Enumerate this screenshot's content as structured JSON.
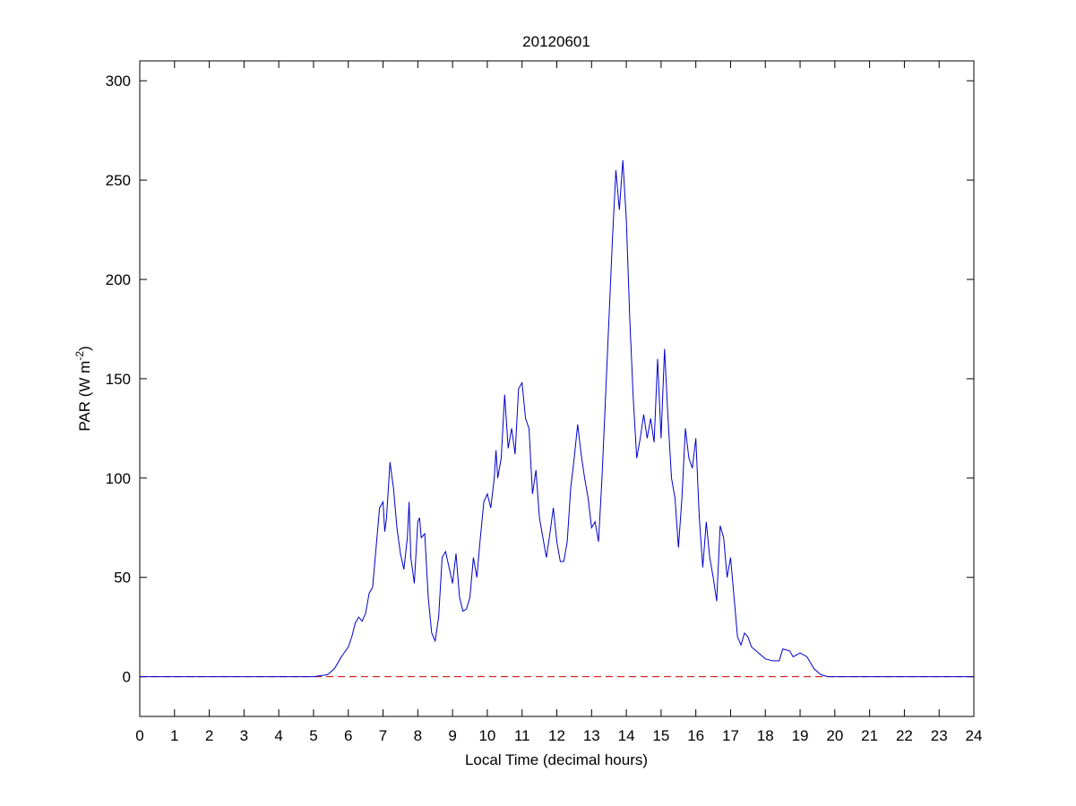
{
  "chart_data": {
    "type": "line",
    "title": "20120601",
    "xlabel": "Local Time (decimal hours)",
    "ylabel": {
      "text": "PAR (W m",
      "superscript": "-2",
      "suffix": ")"
    },
    "xlim": [
      0,
      24
    ],
    "ylim": [
      -20,
      310
    ],
    "xticks": [
      0,
      1,
      2,
      3,
      4,
      5,
      6,
      7,
      8,
      9,
      10,
      11,
      12,
      13,
      14,
      15,
      16,
      17,
      18,
      19,
      20,
      21,
      22,
      23,
      24
    ],
    "yticks": [
      0,
      50,
      100,
      150,
      200,
      250,
      300
    ],
    "grid": false,
    "reference_line": {
      "value": 0,
      "color": "#cc0000",
      "style": "dashed"
    },
    "series": [
      {
        "color": "#0000cc",
        "x": [
          0,
          5,
          5.2,
          5.4,
          5.6,
          5.8,
          6.0,
          6.1,
          6.2,
          6.3,
          6.4,
          6.5,
          6.6,
          6.7,
          6.8,
          6.9,
          7.0,
          7.05,
          7.1,
          7.2,
          7.3,
          7.4,
          7.5,
          7.6,
          7.7,
          7.75,
          7.8,
          7.9,
          8.0,
          8.05,
          8.1,
          8.2,
          8.3,
          8.4,
          8.5,
          8.6,
          8.7,
          8.8,
          8.9,
          9.0,
          9.1,
          9.2,
          9.3,
          9.4,
          9.5,
          9.6,
          9.7,
          9.8,
          9.9,
          10.0,
          10.1,
          10.2,
          10.25,
          10.3,
          10.4,
          10.5,
          10.6,
          10.7,
          10.8,
          10.9,
          11.0,
          11.1,
          11.2,
          11.3,
          11.4,
          11.5,
          11.6,
          11.7,
          11.8,
          11.9,
          12.0,
          12.1,
          12.2,
          12.3,
          12.4,
          12.5,
          12.6,
          12.7,
          12.8,
          12.9,
          13.0,
          13.1,
          13.2,
          13.3,
          13.4,
          13.5,
          13.6,
          13.7,
          13.8,
          13.9,
          14.0,
          14.1,
          14.2,
          14.3,
          14.4,
          14.5,
          14.6,
          14.7,
          14.8,
          14.9,
          15.0,
          15.1,
          15.2,
          15.3,
          15.4,
          15.5,
          15.6,
          15.7,
          15.8,
          15.9,
          16.0,
          16.1,
          16.2,
          16.3,
          16.4,
          16.5,
          16.6,
          16.7,
          16.8,
          16.9,
          17.0,
          17.1,
          17.2,
          17.3,
          17.4,
          17.5,
          17.6,
          17.8,
          18.0,
          18.2,
          18.4,
          18.5,
          18.7,
          18.8,
          19.0,
          19.2,
          19.4,
          19.6,
          19.8,
          24
        ],
        "values": [
          0,
          0,
          0.5,
          1,
          4,
          10,
          15,
          20,
          27,
          30,
          28,
          32,
          42,
          45,
          65,
          85,
          88,
          73,
          80,
          108,
          95,
          75,
          62,
          54,
          70,
          88,
          60,
          47,
          78,
          80,
          70,
          72,
          40,
          22,
          18,
          30,
          60,
          63,
          55,
          47,
          62,
          40,
          33,
          34,
          40,
          60,
          50,
          70,
          88,
          92,
          85,
          100,
          114,
          100,
          110,
          142,
          115,
          125,
          112,
          145,
          148,
          130,
          125,
          92,
          104,
          80,
          70,
          60,
          72,
          85,
          68,
          58,
          58,
          68,
          95,
          110,
          127,
          112,
          100,
          90,
          75,
          78,
          68,
          100,
          140,
          180,
          220,
          255,
          235,
          260,
          230,
          180,
          140,
          110,
          120,
          132,
          120,
          130,
          118,
          160,
          120,
          165,
          130,
          100,
          90,
          65,
          90,
          125,
          110,
          105,
          120,
          80,
          55,
          78,
          60,
          50,
          38,
          76,
          70,
          50,
          60,
          40,
          20,
          16,
          22,
          20,
          15,
          12,
          9,
          8,
          8,
          14,
          13,
          10,
          12,
          10,
          4,
          1,
          0,
          0
        ]
      }
    ]
  }
}
